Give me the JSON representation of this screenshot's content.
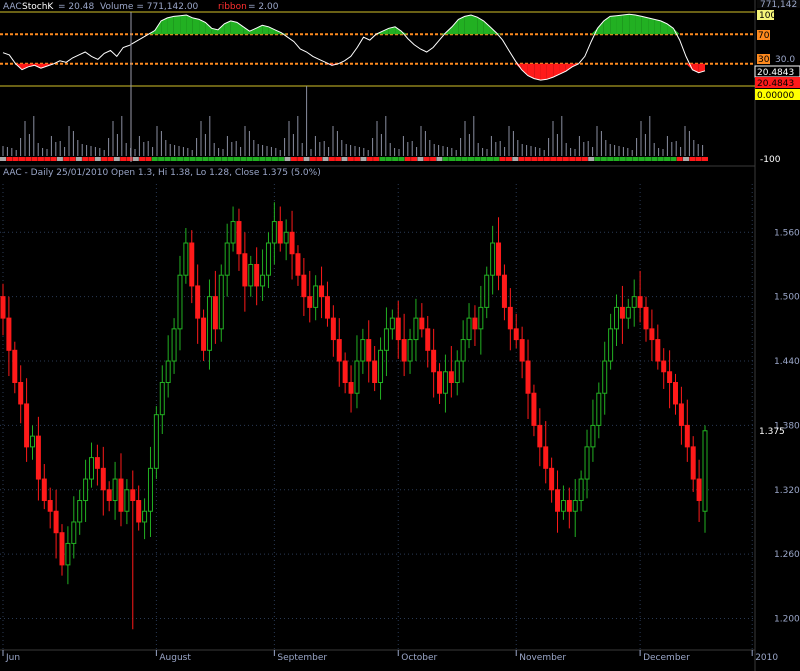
{
  "indicator_header": {
    "symbol": "AAC",
    "stochk_label": "StochK",
    "stochk_value": "= 20.48",
    "volume_label": "Volume = 771,142.00",
    "ribbon_label": "ribbon",
    "ribbon_value": "= 2.00"
  },
  "indicator_axis": {
    "top_value": "771,142",
    "level_100": "100",
    "level_70": "70",
    "level_30": "30",
    "level_30_grid": "30.0",
    "current_value": "20.4843",
    "current_value_red": "20.4843",
    "zero_value": "0.00000",
    "bottom_value": "-100"
  },
  "price_header": {
    "title": "AAC - Daily 25/01/2010 Open 1.3, Hi 1.38, Lo 1.28, Close 1.375 (5.0%)"
  },
  "price_axis": {
    "ticks": [
      "1.560",
      "1.500",
      "1.440",
      "1.380",
      "1.320",
      "1.260",
      "1.200"
    ],
    "last_price": "1.375"
  },
  "colors": {
    "up": "#22b022",
    "down": "#ff1a1a",
    "grid": "#2a3a55",
    "level_line": "#ff8a1e",
    "band_line": "#d4c22a",
    "volume": "#8a8ea0",
    "stoch_line": "#ffffff"
  },
  "chart_data": {
    "type": "candlestick",
    "title": "AAC - Daily 25/01/2010 Open 1.3, Hi 1.38, Lo 1.28, Close 1.375 (5.0%)",
    "x_axis_labels": [
      "Jun",
      "August",
      "September",
      "October",
      "November",
      "December",
      "2010"
    ],
    "x_axis_label_positions_bar": [
      0,
      26,
      46,
      67,
      87,
      108,
      127
    ],
    "ylim": [
      1.18,
      1.605
    ],
    "y_ticks": [
      1.56,
      1.5,
      1.44,
      1.38,
      1.32,
      1.26,
      1.2
    ],
    "last_bar": {
      "date": "25/01/2010",
      "open": 1.3,
      "high": 1.38,
      "low": 1.28,
      "close": 1.375,
      "change_pct": 5.0
    },
    "closes": [
      1.48,
      1.45,
      1.42,
      1.4,
      1.36,
      1.37,
      1.33,
      1.31,
      1.3,
      1.28,
      1.25,
      1.27,
      1.29,
      1.31,
      1.33,
      1.35,
      1.34,
      1.32,
      1.31,
      1.33,
      1.3,
      1.32,
      1.31,
      1.29,
      1.3,
      1.34,
      1.39,
      1.42,
      1.44,
      1.47,
      1.52,
      1.55,
      1.51,
      1.48,
      1.45,
      1.5,
      1.47,
      1.52,
      1.55,
      1.57,
      1.54,
      1.51,
      1.53,
      1.51,
      1.52,
      1.55,
      1.57,
      1.55,
      1.56,
      1.54,
      1.52,
      1.5,
      1.49,
      1.51,
      1.5,
      1.48,
      1.46,
      1.44,
      1.42,
      1.41,
      1.44,
      1.46,
      1.44,
      1.42,
      1.45,
      1.47,
      1.48,
      1.46,
      1.44,
      1.46,
      1.48,
      1.47,
      1.45,
      1.43,
      1.41,
      1.43,
      1.42,
      1.44,
      1.46,
      1.48,
      1.47,
      1.49,
      1.52,
      1.55,
      1.52,
      1.49,
      1.47,
      1.46,
      1.44,
      1.41,
      1.38,
      1.36,
      1.34,
      1.32,
      1.3,
      1.31,
      1.3,
      1.31,
      1.33,
      1.36,
      1.38,
      1.41,
      1.44,
      1.47,
      1.49,
      1.48,
      1.49,
      1.5,
      1.49,
      1.47,
      1.46,
      1.44,
      1.43,
      1.42,
      1.4,
      1.38,
      1.36,
      1.33,
      1.31,
      1.375
    ],
    "stochk": [
      45,
      42,
      30,
      22,
      26,
      28,
      24,
      27,
      30,
      34,
      32,
      38,
      42,
      46,
      40,
      36,
      44,
      48,
      40,
      52,
      55,
      60,
      65,
      70,
      75,
      88,
      92,
      94,
      95,
      96,
      92,
      90,
      86,
      78,
      76,
      84,
      88,
      86,
      80,
      74,
      78,
      82,
      80,
      76,
      72,
      66,
      60,
      50,
      46,
      40,
      36,
      32,
      28,
      30,
      34,
      40,
      52,
      66,
      62,
      70,
      74,
      78,
      80,
      74,
      64,
      56,
      50,
      46,
      52,
      62,
      72,
      80,
      90,
      94,
      96,
      93,
      88,
      80,
      72,
      62,
      48,
      34,
      22,
      14,
      10,
      8,
      9,
      12,
      16,
      20,
      26,
      30,
      40,
      60,
      78,
      88,
      94,
      95,
      96,
      97,
      96,
      94,
      92,
      90,
      88,
      84,
      78,
      62,
      40,
      22,
      18,
      20.48
    ],
    "stoch_levels": [
      100,
      70,
      30,
      0
    ]
  }
}
